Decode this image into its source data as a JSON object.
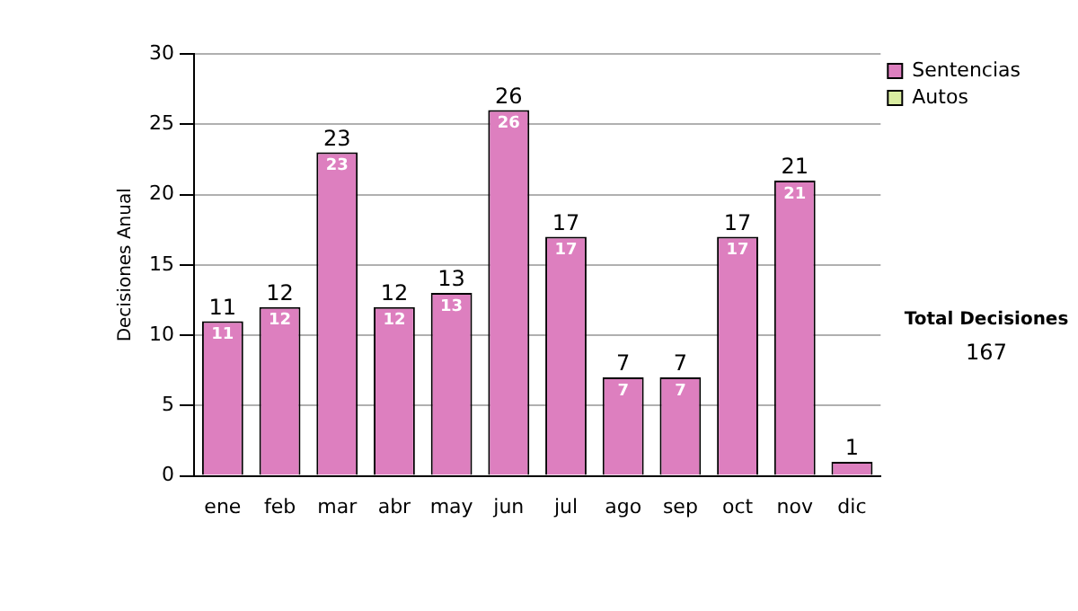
{
  "chart_data": {
    "type": "bar",
    "ylabel": "Decisiones Anual",
    "categories": [
      "ene",
      "feb",
      "mar",
      "abr",
      "may",
      "jun",
      "jul",
      "ago",
      "sep",
      "oct",
      "nov",
      "dic"
    ],
    "series": [
      {
        "name": "Sentencias",
        "color": "#dd7fbf",
        "values": [
          11,
          12,
          23,
          12,
          13,
          26,
          17,
          7,
          7,
          17,
          21,
          1
        ],
        "value_labels": [
          "11",
          "12",
          "23",
          "12",
          "13",
          "26",
          "17",
          "7",
          "7",
          "17",
          "21",
          null
        ]
      },
      {
        "name": "Autos",
        "color": "#d9eca0",
        "values": [
          0,
          0,
          0,
          0,
          0,
          0,
          0,
          0,
          0,
          0,
          0,
          0
        ]
      }
    ],
    "stacked": true,
    "totals": [
      "11",
      "12",
      "23",
      "12",
      "13",
      "26",
      "17",
      "7",
      "7",
      "17",
      "21",
      "1"
    ],
    "ylim": [
      0,
      30
    ],
    "yticks": [
      0,
      5,
      10,
      15,
      20,
      25,
      30
    ],
    "grid": "y",
    "legend": "right",
    "annotations": [
      "Total Decisiones",
      "167"
    ]
  }
}
